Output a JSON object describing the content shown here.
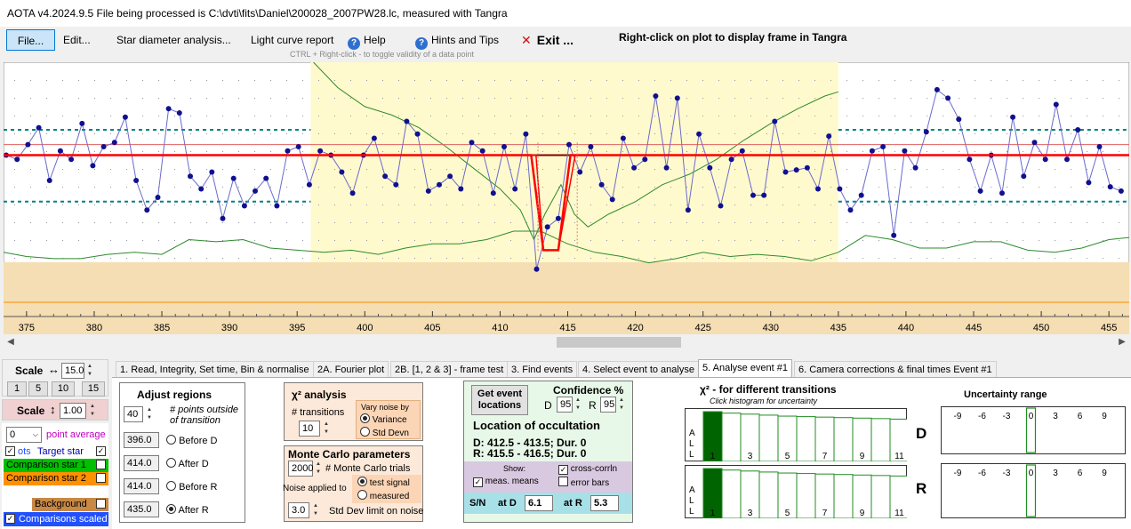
{
  "window": {
    "title": "AOTA v4.2024.9.5    File being processed is C:\\dvti\\fits\\Daniel\\200028_2007PW28.lc, measured with Tangra"
  },
  "menu": {
    "file": "File...",
    "edit": "Edit...",
    "star_diameter": "Star diameter analysis...",
    "light_curve_report": "Light curve report",
    "help": "Help",
    "hints": "Hints and Tips",
    "exit": "Exit ...",
    "right_click_note": "Right-click on plot to display frame in Tangra",
    "ctrl_note": "CTRL + Right-click  -  to toggle validity of a data point",
    "help_icon": "question-circle-icon",
    "exit_icon": "red-x-icon"
  },
  "plot": {
    "x_ticks": [
      "375",
      "380",
      "385",
      "390",
      "395",
      "400",
      "405",
      "410",
      "415",
      "420",
      "425",
      "430",
      "435",
      "440",
      "445",
      "450",
      "455"
    ],
    "x_range": [
      373.3,
      456.5
    ],
    "y_range": [
      -5,
      55
    ],
    "regions": {
      "before_d_start": 396.0,
      "after_d": 414.0,
      "before_r": 414.0,
      "after_r": 435.0
    },
    "event_line": {
      "x": [
        373.3,
        412.3,
        413.2,
        414.3,
        415.2,
        456.5
      ],
      "y": [
        33,
        33,
        10.5,
        10.5,
        33,
        33
      ]
    },
    "baseline": 33,
    "upper_dotted": 35.5,
    "noise_bands_outside": [
      39,
      22
    ],
    "noise_bands_inside": [
      40.5,
      22.7
    ],
    "series_points": {
      "x": [
        373.5,
        374.3,
        375.1,
        375.9,
        376.7,
        377.5,
        378.3,
        379.1,
        379.9,
        380.7,
        381.5,
        382.3,
        383.1,
        383.9,
        384.7,
        385.5,
        386.3,
        387.1,
        387.9,
        388.7,
        389.5,
        390.3,
        391.1,
        391.9,
        392.7,
        393.5,
        394.3,
        395.1,
        395.9,
        396.7,
        397.5,
        398.3,
        399.1,
        399.9,
        400.7,
        401.5,
        402.3,
        403.1,
        403.9,
        404.7,
        405.5,
        406.3,
        407.1,
        407.9,
        408.7,
        409.5,
        410.3,
        411.1,
        411.9,
        412.7,
        413.5,
        414.3,
        415.1,
        415.9,
        416.7,
        417.5,
        418.3,
        419.1,
        419.9,
        420.7,
        421.5,
        422.3,
        423.1,
        423.9,
        424.7,
        425.5,
        426.3,
        427.1,
        427.9,
        428.7,
        429.5,
        430.3,
        431.1,
        431.9,
        432.7,
        433.5,
        434.3,
        435.1,
        435.9,
        436.7,
        437.5,
        438.3,
        439.1,
        439.9,
        440.7,
        441.5,
        442.3,
        443.1,
        443.9,
        444.7,
        445.5,
        446.3,
        447.1,
        447.9,
        448.7,
        449.5,
        450.3,
        451.1,
        451.9,
        452.7,
        453.5,
        454.3,
        455.1,
        455.9
      ],
      "y": [
        33,
        32,
        35.5,
        39.5,
        27,
        34,
        32,
        40.5,
        30.5,
        35,
        36,
        42,
        27,
        20,
        23,
        44,
        43,
        28,
        25,
        29,
        18,
        27.5,
        21,
        24.5,
        27.5,
        21,
        34,
        35,
        26,
        34,
        33,
        29,
        24,
        33,
        37,
        28,
        26,
        41,
        38,
        24.5,
        26,
        28,
        25,
        36,
        34,
        24,
        35,
        25,
        38,
        6,
        16,
        18,
        35.5,
        29,
        35,
        26,
        22.5,
        37,
        30,
        32,
        47,
        30,
        46.5,
        20,
        38,
        30,
        21,
        32,
        34,
        23.5,
        23.5,
        41,
        29,
        29.5,
        30,
        25,
        37.5,
        25,
        20,
        23.5,
        34,
        35,
        14,
        34,
        30,
        38.5,
        48.5,
        46.5,
        41.5,
        32,
        24.5,
        33,
        24,
        42,
        28,
        36,
        32,
        45,
        32,
        39,
        26.5,
        35,
        25.5,
        24.5
      ]
    },
    "green_upper": {
      "x": [
        396.2,
        398,
        400,
        402,
        404,
        406,
        408,
        410,
        411.5,
        412.5,
        413.3,
        414.5,
        415.5,
        416.5,
        418,
        420,
        422,
        424,
        426,
        428,
        430,
        432,
        434,
        435
      ],
      "y": [
        55,
        49,
        44.5,
        42.5,
        39.5,
        35,
        30,
        25,
        20,
        13,
        19,
        26,
        19,
        16,
        19,
        22,
        26,
        28.5,
        32,
        36.5,
        40.5,
        44,
        47,
        48
      ]
    },
    "green_lower": {
      "x": [
        373.3,
        375,
        377,
        379,
        381,
        383,
        385,
        387,
        389,
        391,
        393,
        395,
        397,
        399,
        401,
        403,
        405,
        407,
        409,
        411,
        413,
        415,
        417,
        419,
        421,
        423,
        425,
        427,
        429,
        431,
        433,
        435,
        437,
        439,
        441,
        443,
        445,
        447,
        449,
        451,
        453,
        455,
        456.5
      ],
      "y": [
        10,
        9,
        8.5,
        8.5,
        9.5,
        10,
        9.5,
        13,
        12.5,
        13,
        11,
        10.5,
        10,
        10.5,
        9.5,
        11,
        12,
        12,
        13,
        15,
        15,
        12,
        10,
        9,
        7.5,
        8.5,
        10,
        9,
        9.5,
        9,
        8,
        10,
        14,
        13,
        11,
        11,
        12.5,
        12.5,
        10.5,
        10,
        11,
        13,
        13.5
      ]
    }
  },
  "left_panel": {
    "scale_h_label": "Scale",
    "scale_h_value": "15.0",
    "scale_presets": [
      "1",
      "5",
      "10",
      "15"
    ],
    "scale_v_label": "Scale",
    "scale_v_value": "1.00",
    "point_avg_value": "0",
    "point_avg_label": "point average",
    "plots_label": "ots",
    "target_star": "Target star",
    "comparison1": "Comparison star 1",
    "comparison2": "Comparison star 2",
    "background": "Background",
    "comparisons_scaled": "Comparisons scaled",
    "arrow_h_icon": "horizontal-double-arrow-icon",
    "arrow_v_icon": "vertical-double-arrow-icon",
    "colors": {
      "target": "#ffffff",
      "comp1": "#00c000",
      "comp2": "#ff9000",
      "background": "#c88846",
      "scaled": "#2050ff"
    }
  },
  "tabs": [
    "1.  Read, Integrity, Set time, Bin & normalise",
    "2A. Fourier plot",
    "2B. [1, 2 & 3] - frame test",
    "3. Find events",
    "4. Select event to analyse",
    "5. Analyse event #1",
    "6. Camera corrections & final times Event #1"
  ],
  "adjust_regions": {
    "title": "Adjust regions",
    "points_outside_value": "40",
    "points_outside_label": "# points outside of transition",
    "before_d_value": "396.0",
    "before_d_label": "Before D",
    "after_d_value": "414.0",
    "after_d_label": "After D",
    "before_r_value": "414.0",
    "before_r_label": "Before R",
    "after_r_value": "435.0",
    "after_r_label": "After R"
  },
  "chi2_analysis": {
    "title": "χ² analysis",
    "transitions_label": "# transitions",
    "transitions_value": "10",
    "vary_noise_label": "Vary noise by",
    "variance": "Variance",
    "std_devn": "Std Devn"
  },
  "monte_carlo": {
    "title": "Monte Carlo parameters",
    "trials_value": "2000",
    "trials_label": "# Monte Carlo trials",
    "noise_applied_to": "Noise applied to",
    "test_signal": "test signal",
    "measured": "measured",
    "std_limit_value": "3.0",
    "std_limit_label": "Std Dev limit on noise"
  },
  "location": {
    "get_event_btn": "Get event locations",
    "confidence_title": "Confidence %",
    "d_label": "D",
    "d_value": "95",
    "r_label": "R",
    "r_value": "95",
    "location_title": "Location of occultation",
    "d_line": "D: 412.5 - 413.5; Dur. 0",
    "r_line": "R: 415.5 - 416.5; Dur. 0",
    "show_label": "Show:",
    "meas_means": "meas. means",
    "cross_corrln": "cross-corrln",
    "error_bars": "error bars",
    "sn_label": "S/N",
    "at_d_label": "at D",
    "at_d_value": "6.1",
    "at_r_label": "at R",
    "at_r_value": "5.3"
  },
  "chi2_transitions": {
    "title": "χ² - for different transitions",
    "subtitle": "Click histogram for uncertainty",
    "d_letter": "D",
    "r_letter": "R",
    "all_letters": [
      "A",
      "L",
      "L"
    ],
    "bins": [
      1,
      2,
      3,
      4,
      5,
      6,
      7,
      8,
      9,
      10,
      11
    ],
    "tick_labels": [
      "1",
      "3",
      "5",
      "7",
      "9",
      "11"
    ],
    "d_heights": [
      1.0,
      0.97,
      0.95,
      0.93,
      0.91,
      0.9,
      0.89,
      0.88,
      0.87,
      0.86,
      0.85
    ],
    "r_heights": [
      1.0,
      0.97,
      0.95,
      0.93,
      0.91,
      0.9,
      0.89,
      0.88,
      0.87,
      0.86,
      0.85
    ]
  },
  "uncertainty": {
    "title": "Uncertainty range",
    "ticks": [
      "-9",
      "-6",
      "-3",
      "0",
      "3",
      "6",
      "9"
    ]
  }
}
